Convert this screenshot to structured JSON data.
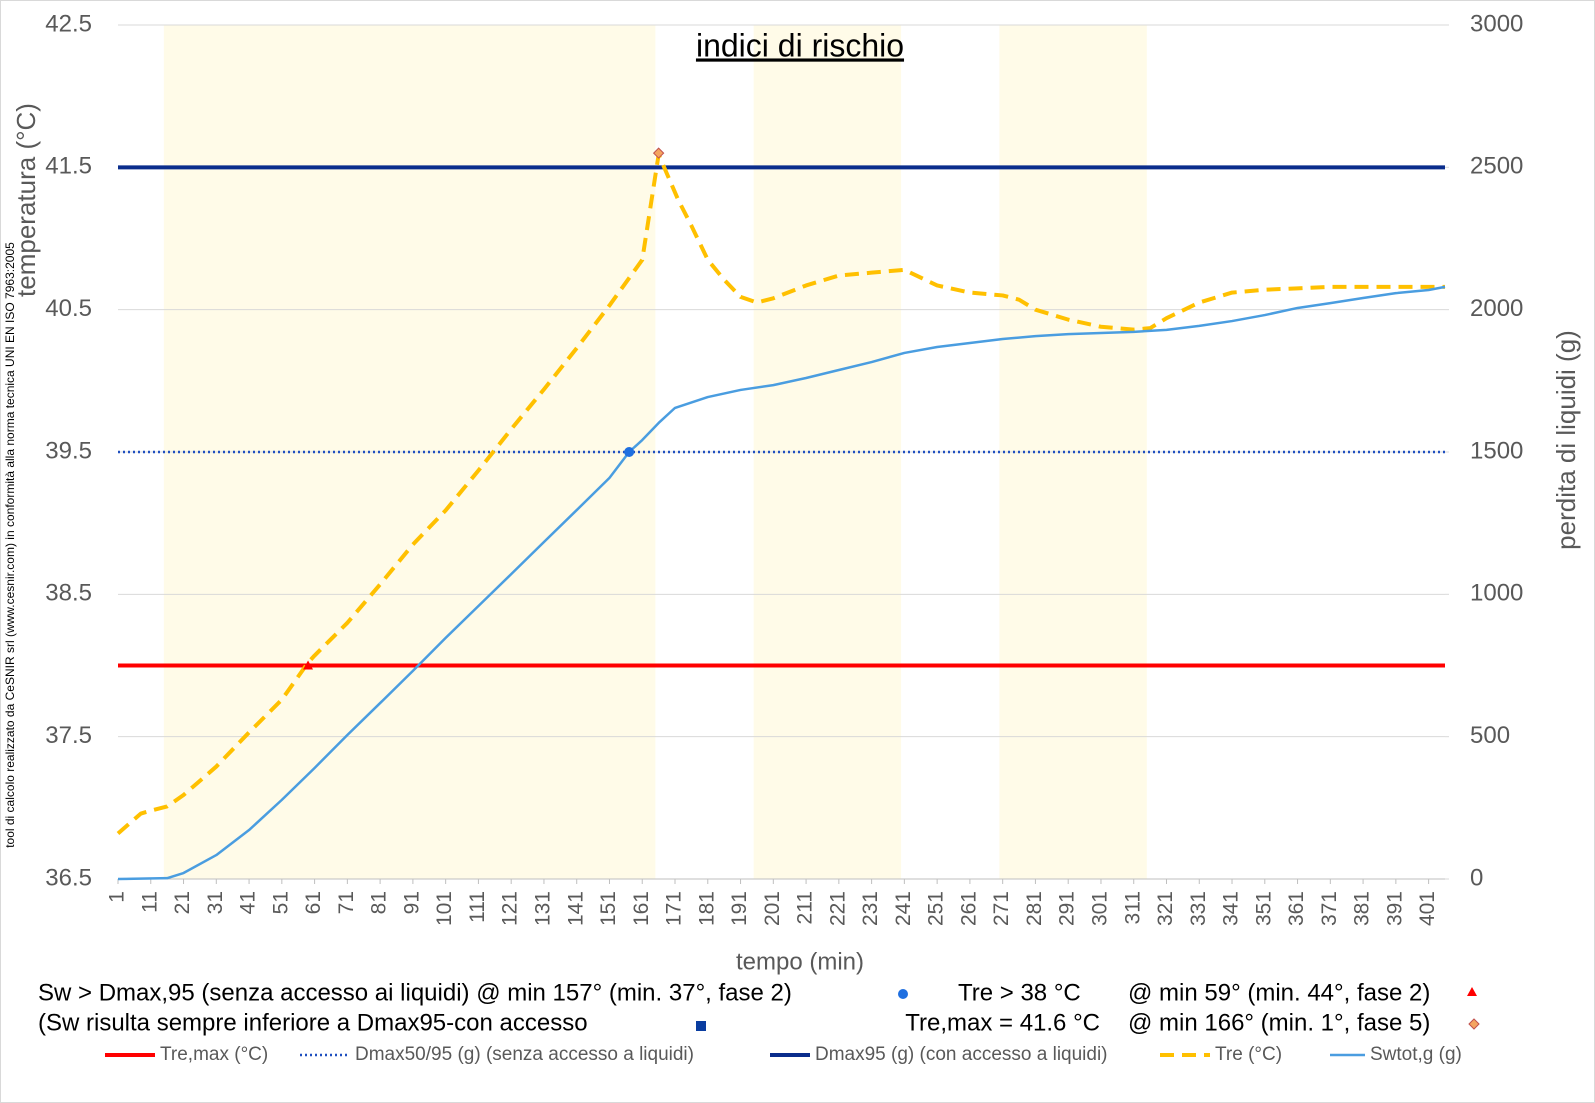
{
  "chart_data": {
    "type": "line",
    "title": "indici di rischio",
    "x_label": "tempo (min)",
    "y_label": "temperatura (°C)",
    "y2_label": "perdita di liquidi (g)",
    "side_note": "tool di calcolo realizzato da CeSNIR srl (www.cesnir.com) in conformità alla norma tecnica UNI EN ISO 7963:2005",
    "xlim": [
      1,
      406
    ],
    "xticks": [
      1,
      11,
      21,
      31,
      41,
      51,
      61,
      71,
      81,
      91,
      101,
      111,
      121,
      131,
      141,
      151,
      161,
      171,
      181,
      191,
      201,
      211,
      221,
      231,
      241,
      251,
      261,
      271,
      281,
      291,
      301,
      311,
      321,
      331,
      341,
      351,
      361,
      371,
      381,
      391,
      401
    ],
    "ylim": [
      36.5,
      42.5
    ],
    "yticks": [
      36.5,
      37.5,
      38.5,
      39.5,
      40.5,
      41.5,
      42.5
    ],
    "y2lim": [
      0,
      3000
    ],
    "y2ticks": [
      0,
      500,
      1000,
      1500,
      2000,
      2500,
      3000
    ],
    "grid": true,
    "bands": [
      [
        15,
        165
      ],
      [
        195,
        240
      ],
      [
        270,
        315
      ]
    ],
    "band_color": "#fffbe8",
    "series": [
      {
        "name": "Tre,max (°C)",
        "color": "#ff0000",
        "dash": "solid",
        "width": 4,
        "x": [
          1,
          406
        ],
        "values": [
          38,
          38
        ]
      },
      {
        "name": "Dmax50/95 (g) (senza accesso a liquidi)",
        "color": "#1f4fbf",
        "dash": "dotted",
        "width": 2.5,
        "axis": "y2",
        "x": [
          1,
          406
        ],
        "values": [
          1500,
          1500
        ]
      },
      {
        "name": "Dmax95 (g) (con accesso a liquidi)",
        "color": "#0a2d8c",
        "dash": "solid",
        "width": 4,
        "axis": "y2",
        "x": [
          1,
          406
        ],
        "values": [
          2500,
          2500
        ]
      },
      {
        "name": "Tre (°C)",
        "color": "#ffc000",
        "dash": "dashed",
        "width": 4,
        "x": [
          1,
          8,
          11,
          16,
          21,
          31,
          41,
          51,
          59,
          61,
          71,
          81,
          91,
          101,
          111,
          121,
          131,
          141,
          151,
          161,
          166,
          172,
          176,
          181,
          186,
          191,
          196,
          201,
          211,
          221,
          231,
          241,
          251,
          261,
          271,
          276,
          281,
          291,
          301,
          311,
          316,
          321,
          331,
          341,
          351,
          361,
          371,
          401,
          406
        ],
        "values": [
          36.82,
          36.96,
          36.98,
          37.01,
          37.09,
          37.29,
          37.53,
          37.76,
          38.02,
          38.07,
          38.3,
          38.57,
          38.85,
          39.09,
          39.37,
          39.66,
          39.94,
          40.23,
          40.53,
          40.85,
          41.59,
          41.27,
          41.09,
          40.85,
          40.71,
          40.59,
          40.55,
          40.58,
          40.67,
          40.74,
          40.76,
          40.78,
          40.67,
          40.62,
          40.6,
          40.57,
          40.5,
          40.43,
          40.38,
          40.36,
          40.37,
          40.44,
          40.55,
          40.62,
          40.64,
          40.65,
          40.66,
          40.66,
          40.66
        ]
      },
      {
        "name": "Swtot,g (g)",
        "color": "#4a9de0",
        "dash": "solid",
        "width": 2.5,
        "axis": "y2",
        "x": [
          1,
          16,
          21,
          31,
          41,
          51,
          61,
          71,
          81,
          91,
          101,
          111,
          121,
          131,
          141,
          151,
          157,
          161,
          166,
          171,
          181,
          191,
          201,
          211,
          221,
          231,
          241,
          251,
          261,
          271,
          281,
          291,
          301,
          311,
          321,
          331,
          341,
          351,
          361,
          371,
          381,
          391,
          401,
          406
        ],
        "values": [
          0,
          3,
          21,
          84,
          172,
          278,
          390,
          506,
          618,
          731,
          847,
          959,
          1071,
          1184,
          1296,
          1409,
          1500,
          1542,
          1602,
          1655,
          1693,
          1718,
          1735,
          1760,
          1788,
          1816,
          1848,
          1869,
          1883,
          1897,
          1907,
          1914,
          1918,
          1922,
          1929,
          1943,
          1960,
          1981,
          2006,
          2023,
          2041,
          2058,
          2069,
          2080
        ]
      }
    ],
    "markers": [
      {
        "x": 157,
        "value": 1500,
        "axis": "y2",
        "color": "#1f6fe0",
        "shape": "circle"
      },
      {
        "x": 59,
        "value": 38,
        "color": "#ff0000",
        "shape": "triangle"
      },
      {
        "x": 166,
        "value": 41.6,
        "color": "#f4a460",
        "shape": "diamond"
      }
    ],
    "annotations": [
      "Sw > Dmax,95 (senza accesso ai liquidi) @ min 157° (min. 37°, fase 2)",
      "Tre > 38 °C",
      "@ min 59° (min. 44°, fase 2)",
      "(Sw risulta sempre inferiore a Dmax95-con accesso",
      "Tre,max = 41.6 °C",
      "@ min 166° (min. 1°, fase 5)"
    ]
  }
}
